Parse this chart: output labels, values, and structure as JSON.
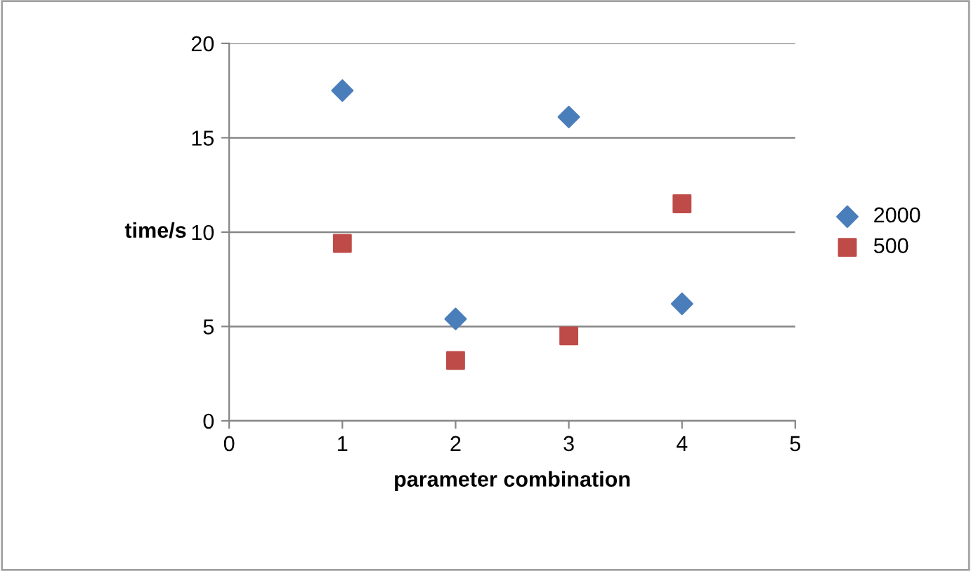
{
  "chart_data": {
    "type": "scatter",
    "xlabel": "parameter combination",
    "ylabel": "time/s",
    "xlim": [
      0,
      5
    ],
    "xticks": [
      0,
      1,
      2,
      3,
      4,
      5
    ],
    "ylim": [
      0,
      20
    ],
    "yticks": [
      0,
      5,
      10,
      15,
      20
    ],
    "grid": "y",
    "legend": "right",
    "series": [
      {
        "name": "2000",
        "color": "#4a7ebb",
        "marker": "diamond",
        "x": [
          1,
          2,
          3,
          4
        ],
        "values": [
          17.5,
          5.4,
          16.1,
          6.2
        ]
      },
      {
        "name": "500",
        "color": "#be4b48",
        "marker": "square",
        "x": [
          1,
          2,
          3,
          4
        ],
        "values": [
          9.4,
          3.2,
          4.5,
          11.5
        ]
      }
    ]
  }
}
